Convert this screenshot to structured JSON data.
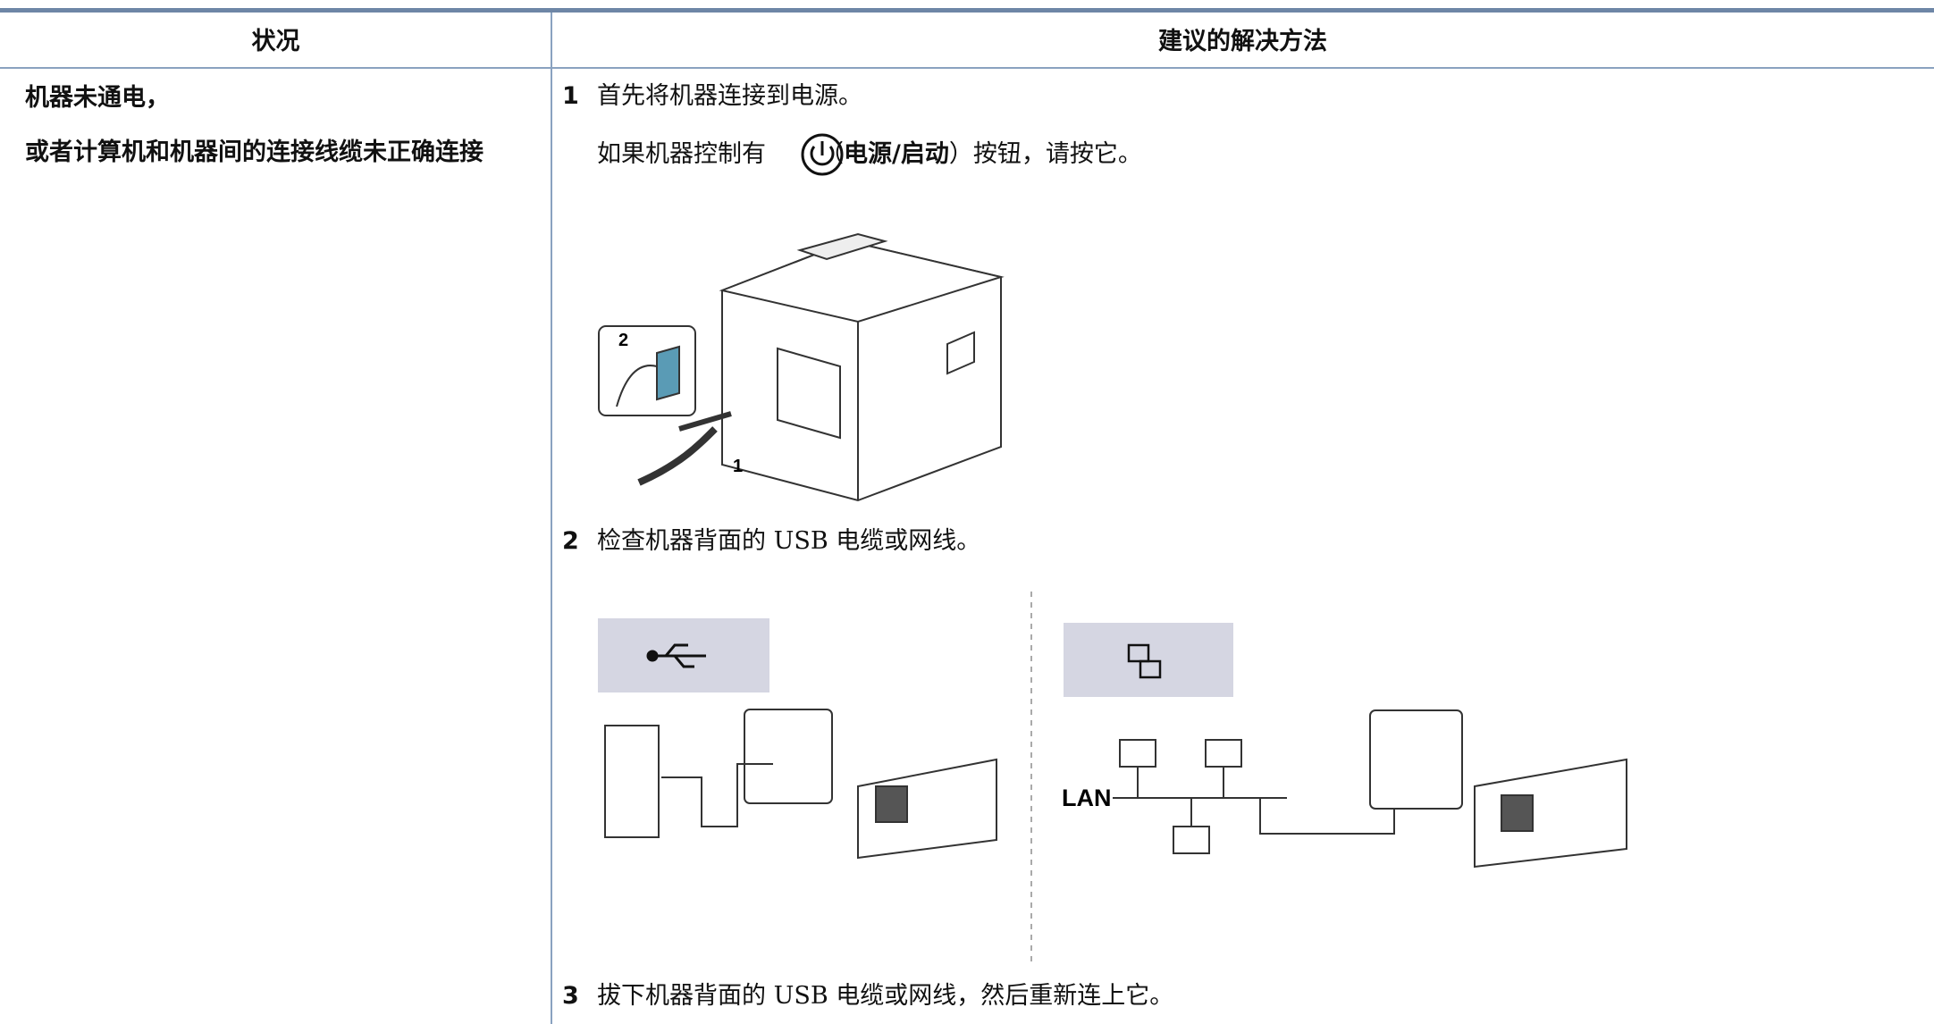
{
  "table": {
    "header": [
      "状况",
      "建议的解决方法"
    ],
    "situation": [
      "机器未通电，",
      "或者计算机和机器间的连接线缆未正确连接"
    ],
    "steps": [
      {
        "number": "1",
        "text": "首先将机器连接到电源。",
        "note": {
          "prefix": "如果机器控制有",
          "open": "（",
          "bold": "电源/启动",
          "close": "）",
          "suffix": "按钮，请按它。"
        }
      },
      {
        "number": "2",
        "text": "检查机器背面的 USB 电缆或网线。"
      },
      {
        "number": "3",
        "text": "拔下机器背面的 USB 电缆或网线，然后重新连上它。"
      }
    ],
    "figure_labels": {
      "switch": "2",
      "plug": "1",
      "lan": "LAN"
    }
  }
}
